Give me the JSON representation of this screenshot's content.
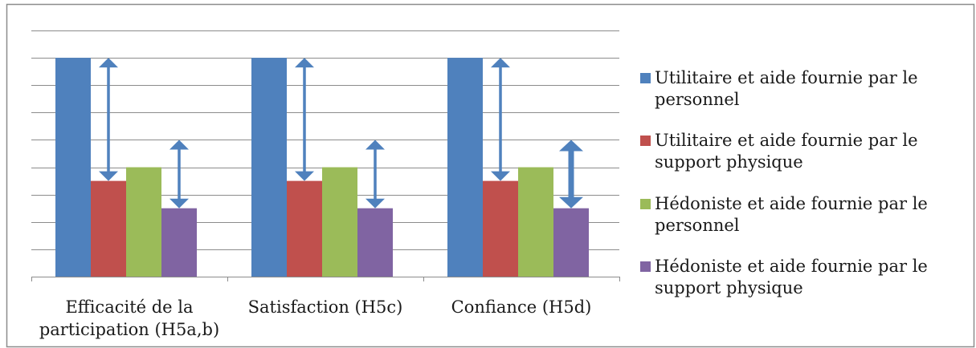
{
  "chart_data": {
    "type": "bar",
    "title": "",
    "xlabel": "",
    "ylabel": "",
    "grid": true,
    "legend_position": "right",
    "ylim": [
      0,
      9
    ],
    "categories": [
      [
        "Efficacité de la",
        "participation (H5a,b)"
      ],
      [
        "Satisfaction (H5c)"
      ],
      [
        "Confiance (H5d)"
      ]
    ],
    "series": [
      {
        "name": [
          "Utilitaire et aide fournie par le",
          "personnel"
        ],
        "color": "#4f81bd",
        "values": [
          8,
          8,
          8
        ]
      },
      {
        "name": [
          "Utilitaire et aide fournie par le",
          "support physique"
        ],
        "color": "#c0504d",
        "values": [
          3.5,
          3.5,
          3.5
        ]
      },
      {
        "name": [
          "Hédoniste et aide fournie par le",
          "personnel"
        ],
        "color": "#9bbb59",
        "values": [
          4,
          4,
          4
        ]
      },
      {
        "name": [
          "Hédoniste et aide fournie par le",
          "support physique"
        ],
        "color": "#8064a2",
        "values": [
          2.5,
          2.5,
          2.5
        ]
      }
    ],
    "annotations": [
      {
        "type": "double-arrow",
        "category": 0,
        "from_value": 8,
        "to_value": 3.5
      },
      {
        "type": "double-arrow",
        "category": 0,
        "from_value": 5,
        "to_value": 2.5
      },
      {
        "type": "double-arrow",
        "category": 1,
        "from_value": 8,
        "to_value": 3.5
      },
      {
        "type": "double-arrow",
        "category": 1,
        "from_value": 5,
        "to_value": 2.5
      },
      {
        "type": "double-arrow",
        "category": 2,
        "from_value": 8,
        "to_value": 3.5
      },
      {
        "type": "double-arrow",
        "category": 2,
        "from_value": 5,
        "to_value": 2.5,
        "style": "bold"
      }
    ],
    "arrow_color": "#4f81bd",
    "frame_color": "#8c8c8c",
    "grid_color": "#8c8c8c"
  }
}
